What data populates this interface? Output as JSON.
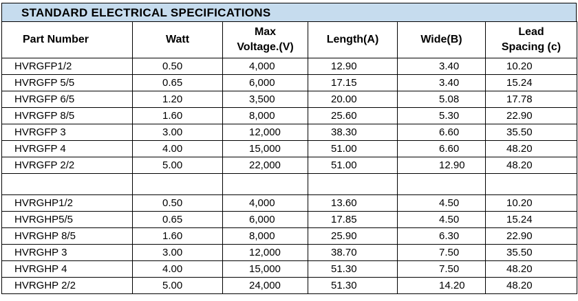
{
  "title": "STANDARD ELECTRICAL  SPECIFICATIONS",
  "headers": [
    "Part Number",
    "Watt",
    "Max\nVoltage.(V)",
    "Length(A)",
    "Wide(B)",
    "Lead\nSpacing (c)"
  ],
  "header_lines": {
    "part_number": "Part Number",
    "watt": "Watt",
    "max_1": "Max",
    "max_2": "Voltage.(V)",
    "length": "Length(A)",
    "wide": "Wide(B)",
    "lead_1": "Lead",
    "lead_2": "Spacing (c)"
  },
  "group1": [
    [
      "HVRGFP1/2",
      "0.50",
      "4,000",
      "12.90",
      "3.40",
      "10.20"
    ],
    [
      "HVRGFP 5/5",
      "0.65",
      "6,000",
      "17.15",
      "3.40",
      "15.24"
    ],
    [
      "HVRGFP 6/5",
      "1.20",
      "3,500",
      "20.00",
      "5.08",
      "17.78"
    ],
    [
      "HVRGFP 8/5",
      "1.60",
      "8,000",
      "25.60",
      "5.30",
      "22.90"
    ],
    [
      "HVRGFP 3",
      "3.00",
      "12,000",
      "38.30",
      "6.60",
      "35.50"
    ],
    [
      "HVRGFP 4",
      "4.00",
      "15,000",
      "51.00",
      "6.60",
      "48.20"
    ],
    [
      "HVRGFP 2/2",
      "5.00",
      "22,000",
      "51.00",
      "12.90",
      "48.20"
    ]
  ],
  "group2": [
    [
      "HVRGHP1/2",
      "0.50",
      "4,000",
      "13.60",
      "4.50",
      "10.20"
    ],
    [
      "HVRGHP5/5",
      "0.65",
      "6,000",
      "17.85",
      "4.50",
      "15.24"
    ],
    [
      "HVRGHP 8/5",
      "1.60",
      "8,000",
      "25.90",
      "6.30",
      "22.90"
    ],
    [
      "HVRGHP 3",
      "3.00",
      "12,000",
      "38.70",
      "7.50",
      "35.50"
    ],
    [
      "HVRGHP 4",
      "4.00",
      "15,000",
      "51.30",
      "7.50",
      "48.20"
    ],
    [
      "HVRGHP 2/2",
      "5.00",
      "24,000",
      "51.30",
      "14.20",
      "48.20"
    ]
  ]
}
